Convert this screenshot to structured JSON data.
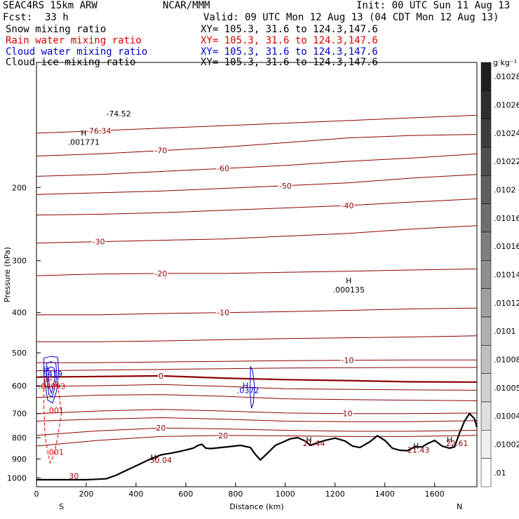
{
  "header": {
    "model": "SEAC4RS 15km ARW",
    "org": "NCAR/MMM",
    "init": "Init: 00 UTC Sun 11 Aug 13",
    "fcst_label": "Fcst:",
    "fcst_value": "33 h",
    "valid": "Valid: 09 UTC Mon 12 Aug 13 (04 CDT Mon 12 Aug 13)"
  },
  "fields": [
    {
      "name": "Snow mixing ratio",
      "xy": "XY= 105.3, 31.6 to 124.3,147.6",
      "color": "#000000"
    },
    {
      "name": "Rain water mixing ratio",
      "xy": "XY= 105.3, 31.6 to 124.3,147.6",
      "color": "#dd0000"
    },
    {
      "name": "Cloud water mixing ratio",
      "xy": "XY= 105.3, 31.6 to 124.3,147.6",
      "color": "#0000cc"
    },
    {
      "name": "Cloud ice mixing ratio",
      "xy": "XY= 105.3, 31.6 to 124.3,147.6",
      "color": "#000000"
    }
  ],
  "colors": {
    "temperature": "#8b0000",
    "terrain": "#000000",
    "rain": "#dd0000",
    "cloud": "#0000cc"
  },
  "chart_data": {
    "type": "line",
    "xlabel": "Distance (km)",
    "ylabel": "Pressure (hPa)",
    "xlim": [
      0,
      1770
    ],
    "ylim": [
      1050,
      100
    ],
    "y_scale": "log",
    "x_ticks": [
      0,
      200,
      400,
      600,
      800,
      1000,
      1200,
      1400,
      1600
    ],
    "x_tick_labels": [
      "0",
      "200",
      "400",
      "600",
      "800",
      "1000",
      "1200",
      "1400",
      "1600"
    ],
    "y_ticks": [
      200,
      300,
      400,
      500,
      600,
      700,
      800,
      900,
      1000
    ],
    "y_tick_labels": [
      "200",
      "300",
      "400",
      "500",
      "600",
      "700",
      "800",
      "900",
      "1000"
    ],
    "endpoints": [
      "S",
      "N"
    ],
    "colorbar": {
      "unit": "g kg⁻¹",
      "labels": [
        ".01028",
        ".01026",
        ".01024",
        ".01022",
        ".0102",
        ".01016",
        ".01016",
        ".01014",
        ".01012",
        ".0101",
        ".01008",
        ".01005",
        ".01004",
        ".01002",
        ".01"
      ]
    },
    "terrain": {
      "x": [
        0,
        100,
        200,
        280,
        320,
        360,
        400,
        450,
        500,
        550,
        600,
        630,
        650,
        665,
        680,
        700,
        740,
        780,
        820,
        860,
        880,
        900,
        930,
        960,
        990,
        1020,
        1050,
        1080,
        1100,
        1130,
        1160,
        1200,
        1240,
        1270,
        1300,
        1340,
        1370,
        1400,
        1430,
        1460,
        1490,
        1520,
        1550,
        1570,
        1600,
        1630,
        1660,
        1680,
        1700,
        1720,
        1740,
        1760,
        1770
      ],
      "p": [
        1010,
        1010,
        1010,
        1005,
        985,
        960,
        935,
        905,
        880,
        870,
        857,
        848,
        835,
        830,
        848,
        850,
        845,
        840,
        835,
        845,
        878,
        905,
        870,
        835,
        820,
        805,
        800,
        815,
        835,
        822,
        812,
        802,
        815,
        838,
        845,
        818,
        792,
        812,
        848,
        858,
        860,
        842,
        842,
        828,
        812,
        838,
        848,
        842,
        780,
        730,
        700,
        720,
        755
      ]
    },
    "isotherms": [
      {
        "label": "-76.34",
        "p": [
          148,
          146,
          144,
          142,
          140,
          138,
          136,
          134
        ]
      },
      {
        "label": "-70",
        "p": [
          168,
          166,
          163,
          160,
          156,
          152,
          150,
          149
        ]
      },
      {
        "label": "-60",
        "p": [
          188,
          186,
          183,
          180,
          177,
          173,
          170,
          166
        ]
      },
      {
        "label": "-50",
        "p": [
          208,
          206,
          204,
          201,
          198,
          195,
          190,
          186
        ]
      },
      {
        "label": "-40",
        "p": [
          233,
          232,
          230,
          227,
          224,
          221,
          217,
          213
        ]
      },
      {
        "label": "-30",
        "p": [
          272,
          270,
          268,
          266,
          262,
          258,
          252,
          247
        ]
      },
      {
        "label": "-20",
        "p": [
          326,
          323,
          322,
          322,
          320,
          318,
          316,
          314
        ]
      },
      {
        "label": "-10",
        "p": [
          405,
          405,
          402,
          400,
          398,
          395,
          392,
          390
        ]
      },
      {
        "label": "",
        "p": [
          470,
          470,
          468,
          465,
          462,
          460,
          458,
          455
        ]
      },
      {
        "label": "-10",
        "p": [
          528,
          528,
          526,
          524,
          522,
          521,
          520,
          520
        ]
      },
      {
        "label": "",
        "p": [
          552,
          550,
          548,
          546,
          544,
          543,
          542,
          542
        ]
      },
      {
        "label": "0",
        "p": [
          572,
          570,
          568,
          575,
          580,
          583,
          587,
          588
        ]
      },
      {
        "label": "",
        "p": [
          602,
          600,
          596,
          602,
          610,
          612,
          614,
          615
        ]
      },
      {
        "label": "",
        "p": [
          640,
          632,
          630,
          636,
          645,
          648,
          650,
          652
        ]
      },
      {
        "label": "10",
        "p": [
          700,
          690,
          684,
          690,
          698,
          700,
          700,
          698
        ]
      },
      {
        "label": "",
        "p": [
          730,
          722,
          716,
          722,
          730,
          732,
          732,
          728
        ]
      },
      {
        "label": "20",
        "p": [
          790,
          770,
          758,
          762,
          768,
          772,
          772,
          768
        ]
      },
      {
        "label": "20",
        "p": [
          838,
          812,
          795,
          790,
          792,
          795,
          795,
          790
        ]
      }
    ],
    "isotherm_x": [
      0,
      250,
      500,
      750,
      1000,
      1250,
      1500,
      1770
    ],
    "labels": [
      {
        "text": "-74.52",
        "x": 330,
        "p": 135
      },
      {
        "text": "H",
        "x": 190,
        "p": 150
      },
      {
        "text": ".001771",
        "x": 190,
        "p": 158
      },
      {
        "text": "H",
        "x": 1255,
        "p": 340
      },
      {
        "text": ".000135",
        "x": 1255,
        "p": 358
      },
      {
        "text": "H",
        "x": 38,
        "p": 555
      },
      {
        "text": ".6419",
        "x": 60,
        "p": 570
      },
      {
        "text": "H",
        "x": 38,
        "p": 590
      },
      {
        "text": ".04093",
        "x": 62,
        "p": 610
      },
      {
        "text": "H",
        "x": 840,
        "p": 608
      },
      {
        "text": ".0372",
        "x": 850,
        "p": 625
      },
      {
        "text": ".001",
        "x": 75,
        "p": 698
      },
      {
        "text": ".001",
        "x": 75,
        "p": 880
      },
      {
        "text": "H",
        "x": 470,
        "p": 905
      },
      {
        "text": "30.04",
        "x": 500,
        "p": 920
      },
      {
        "text": "H",
        "x": 1095,
        "p": 822
      },
      {
        "text": "21.44",
        "x": 1115,
        "p": 838
      },
      {
        "text": "H",
        "x": 1525,
        "p": 852
      },
      {
        "text": "21.43",
        "x": 1535,
        "p": 870
      },
      {
        "text": "H",
        "x": 1660,
        "p": 822
      },
      {
        "text": "22.61",
        "x": 1690,
        "p": 838
      },
      {
        "text": "30",
        "x": 150,
        "p": 1005
      }
    ],
    "cloud_water_contours": [
      {
        "x": [
          30,
          55,
          85,
          90,
          80,
          65,
          45,
          30
        ],
        "p": [
          515,
          510,
          512,
          560,
          620,
          660,
          650,
          570
        ]
      },
      {
        "x": [
          40,
          58,
          78,
          82,
          72,
          62,
          50,
          40
        ],
        "p": [
          530,
          525,
          530,
          570,
          612,
          640,
          630,
          570
        ]
      },
      {
        "x": [
          48,
          60,
          72,
          74,
          66,
          60,
          54,
          48
        ],
        "p": [
          545,
          540,
          545,
          575,
          605,
          625,
          612,
          575
        ]
      },
      {
        "x": [
          860,
          868,
          876,
          872,
          864,
          858,
          860
        ],
        "p": [
          540,
          550,
          600,
          660,
          680,
          620,
          560
        ]
      }
    ],
    "rain_contours": [
      {
        "x": [
          30,
          55,
          85,
          100,
          85,
          70,
          55,
          35,
          30
        ],
        "p": [
          590,
          580,
          590,
          700,
          800,
          880,
          920,
          800,
          680
        ]
      }
    ]
  }
}
